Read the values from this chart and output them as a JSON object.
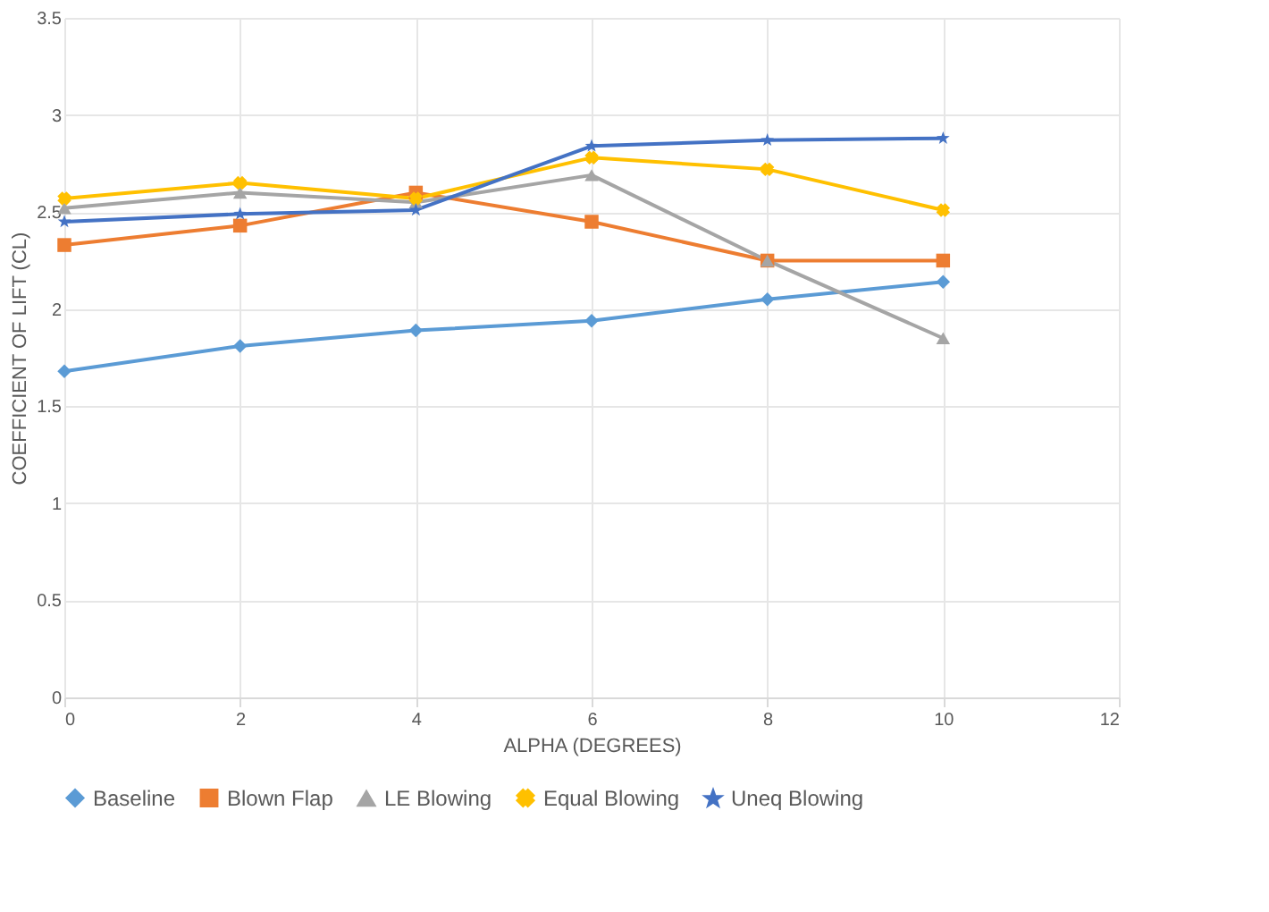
{
  "chart_data": {
    "type": "line",
    "xlabel": "ALPHA (DEGREES)",
    "ylabel": "COEFFICIENT OF LIFT (CL)",
    "x": [
      0,
      2,
      4,
      6,
      8,
      10
    ],
    "series": [
      {
        "name": "Baseline",
        "color": "#5b9bd5",
        "marker": "diamond",
        "values": [
          1.68,
          1.81,
          1.89,
          1.94,
          2.05,
          2.14
        ]
      },
      {
        "name": "Blown Flap",
        "color": "#ed7d31",
        "marker": "square",
        "values": [
          2.33,
          2.43,
          2.6,
          2.45,
          2.25,
          2.25
        ]
      },
      {
        "name": "LE Blowing",
        "color": "#a5a5a5",
        "marker": "triangle",
        "values": [
          2.52,
          2.6,
          2.55,
          2.69,
          2.25,
          1.85
        ]
      },
      {
        "name": "Equal Blowing",
        "color": "#ffc000",
        "marker": "cross",
        "values": [
          2.57,
          2.65,
          2.57,
          2.78,
          2.72,
          2.51
        ]
      },
      {
        "name": "Uneq Blowing",
        "color": "#4472c4",
        "marker": "star",
        "values": [
          2.45,
          2.49,
          2.51,
          2.84,
          2.87,
          2.88
        ]
      }
    ],
    "xlim": [
      0,
      12
    ],
    "xticks": [
      0,
      2,
      4,
      6,
      8,
      10,
      12
    ],
    "ylim": [
      0,
      3.5
    ],
    "yticks": [
      0,
      0.5,
      1,
      1.5,
      2,
      2.5,
      3,
      3.5
    ],
    "grid": true,
    "legend": "bottom",
    "line_style": "solid"
  }
}
